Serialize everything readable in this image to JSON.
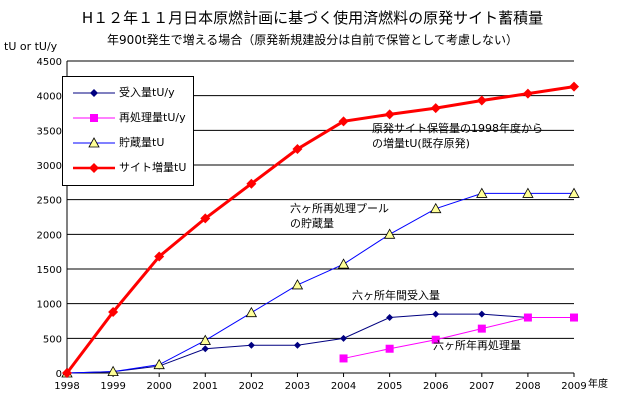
{
  "chart_data": {
    "type": "line",
    "title": "H１２年１１月日本原燃計画に基づく使用済燃料の原発サイト蓄積量",
    "subtitle": "年900t発生で増える場合（原発新規建設分は自前で保管として考慮しない）",
    "ylabel": "tU or tU/y",
    "xlabel": "年度",
    "ylim": [
      0,
      4500
    ],
    "ytick_step": 500,
    "grid": "horizontal",
    "legend_position": "top-left",
    "x": [
      1998,
      1999,
      2000,
      2001,
      2002,
      2003,
      2004,
      2005,
      2006,
      2007,
      2008,
      2009
    ],
    "series": [
      {
        "name": "受入量tU/y",
        "color": "#000080",
        "marker": "diamond",
        "values": [
          0,
          20,
          100,
          350,
          400,
          400,
          500,
          800,
          850,
          850,
          800,
          null
        ]
      },
      {
        "name": "再処理量tU/y",
        "color": "#ff00ff",
        "marker": "square",
        "values": [
          null,
          null,
          null,
          null,
          null,
          null,
          210,
          350,
          480,
          640,
          800,
          800
        ]
      },
      {
        "name": "貯蔵量tU",
        "color": "#0000ff",
        "marker": "triangle",
        "values": [
          0,
          20,
          120,
          470,
          870,
          1270,
          1570,
          2000,
          2370,
          2590,
          2590,
          2590
        ]
      },
      {
        "name": "サイト増量tU",
        "color": "#ff0000",
        "marker": "diamond",
        "values": [
          0,
          880,
          1680,
          2230,
          2730,
          3230,
          3630,
          3730,
          3820,
          3930,
          4030,
          4130
        ]
      }
    ],
    "annotations": [
      {
        "id": "site",
        "text": "原発サイト保管量の1998年度から\nの増量tU(既存原発)"
      },
      {
        "id": "pool",
        "text": "六ヶ所再処理プール\nの貯蔵量"
      },
      {
        "id": "accept",
        "text": "六ヶ所年間受入量"
      },
      {
        "id": "reproc",
        "text": "六ヶ所年再処理量"
      }
    ]
  }
}
